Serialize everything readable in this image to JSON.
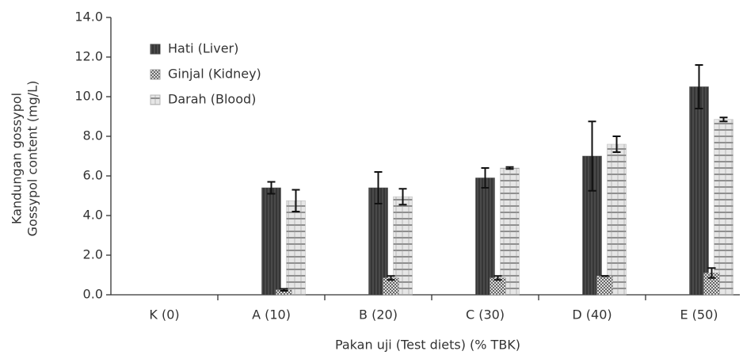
{
  "chart_data": {
    "type": "bar",
    "x_label": "Pakan uji (Test diets) (% TBK)",
    "y_label": [
      "Kandungan gossypol",
      "Gossypol content (mg/L)"
    ],
    "categories": [
      "K (0)",
      "A (10)",
      "B (20)",
      "C (30)",
      "D (40)",
      "E (50)"
    ],
    "series": [
      {
        "name": "Hati (Liver)",
        "color": "#4a4a4a",
        "values": [
          0,
          5.4,
          5.4,
          5.9,
          7.0,
          10.5
        ],
        "errors": [
          null,
          0.3,
          0.8,
          0.5,
          1.75,
          1.1
        ]
      },
      {
        "name": "Ginjal (Kidney)",
        "color": "#9a9a9a",
        "values": [
          0,
          0.25,
          0.85,
          0.85,
          0.95,
          1.1
        ],
        "errors": [
          null,
          0.05,
          0.1,
          0.1,
          0,
          0.25
        ]
      },
      {
        "name": "Darah (Blood)",
        "color": "#b5b5b5",
        "values": [
          0,
          4.75,
          4.95,
          6.4,
          7.6,
          8.85
        ],
        "errors": [
          null,
          0.55,
          0.4,
          0.05,
          0.4,
          0.1
        ]
      }
    ],
    "ylim": [
      0,
      14
    ],
    "yticks": [
      {
        "value": 0,
        "label": "0.0"
      },
      {
        "value": 2,
        "label": "2.0"
      },
      {
        "value": 4,
        "label": "4.0"
      },
      {
        "value": 6,
        "label": "6.0"
      },
      {
        "value": 8,
        "label": "8.0"
      },
      {
        "value": 10,
        "label": "10.0"
      },
      {
        "value": 12,
        "label": "12.0"
      },
      {
        "value": 14,
        "label": "14.0"
      }
    ],
    "legend": "top-left",
    "grid": false
  }
}
